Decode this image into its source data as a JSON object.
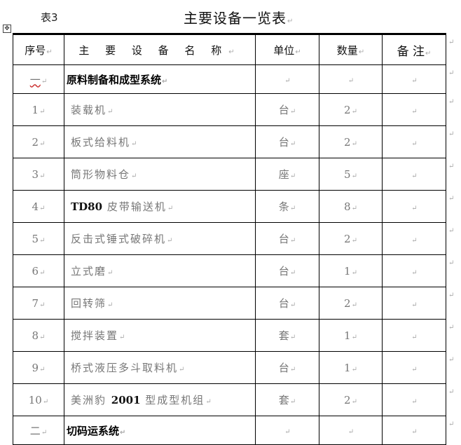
{
  "caption": "表3",
  "title": "主要设备一览表",
  "paragraph_mark": "↵",
  "table_handle_icon": "move-table-icon",
  "headers": [
    "序号",
    "主 要 设 备 名 称",
    "单位",
    "数量",
    "备 注"
  ],
  "rows": [
    {
      "type": "section",
      "no": "一",
      "name": "原料制备和成型系统",
      "unit": "",
      "qty": "",
      "note": ""
    },
    {
      "type": "item",
      "no": "1",
      "name": "装载机",
      "unit": "台",
      "qty": "2",
      "note": ""
    },
    {
      "type": "item",
      "no": "2",
      "name": "板式给料机",
      "unit": "台",
      "qty": "2",
      "note": ""
    },
    {
      "type": "item",
      "no": "3",
      "name": "筒形物料仓",
      "unit": "座",
      "qty": "5",
      "note": ""
    },
    {
      "type": "item",
      "no": "4",
      "name": "TD80 皮带输送机",
      "unit": "条",
      "qty": "8",
      "note": ""
    },
    {
      "type": "item",
      "no": "5",
      "name": "反击式锤式破碎机",
      "unit": "台",
      "qty": "2",
      "note": ""
    },
    {
      "type": "item",
      "no": "6",
      "name": "立式磨",
      "unit": "台",
      "qty": "1",
      "note": ""
    },
    {
      "type": "item",
      "no": "7",
      "name": "回转筛",
      "unit": "台",
      "qty": "2",
      "note": ""
    },
    {
      "type": "item",
      "no": "8",
      "name": "搅拌装置",
      "unit": "套",
      "qty": "1",
      "note": ""
    },
    {
      "type": "item",
      "no": "9",
      "name": "桥式液压多斗取料机",
      "unit": "台",
      "qty": "1",
      "note": ""
    },
    {
      "type": "item",
      "no": "10",
      "name": "美洲豹 2001 型成型机组",
      "unit": "套",
      "qty": "2",
      "note": ""
    },
    {
      "type": "section",
      "no": "二",
      "name": "切码运系统",
      "unit": "",
      "qty": "",
      "note": ""
    }
  ]
}
